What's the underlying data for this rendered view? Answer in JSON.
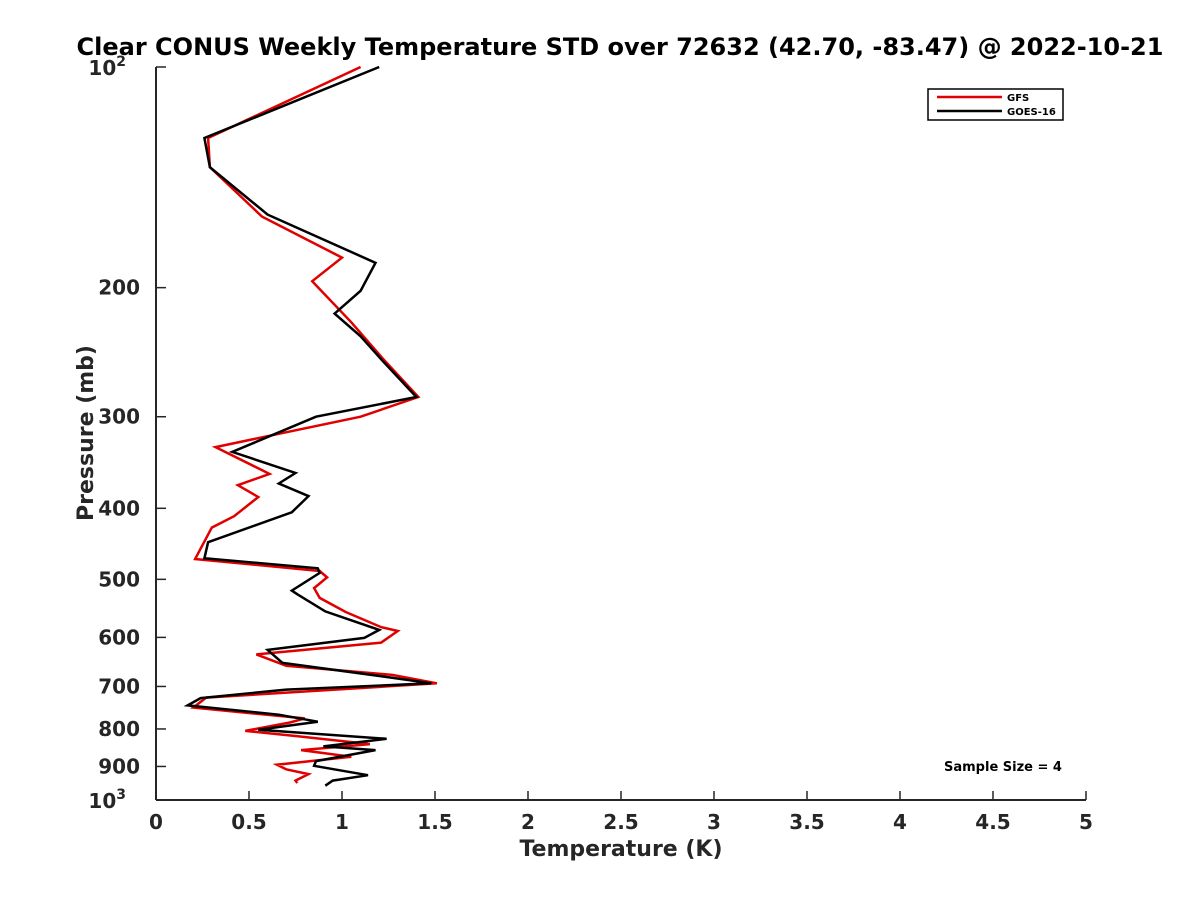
{
  "chart_data": {
    "type": "line",
    "title": "Clear CONUS Weekly Temperature STD over 72632 (42.70, -83.47) @ 2022-10-21",
    "xlabel": "Temperature (K)",
    "ylabel": "Pressure (mb)",
    "xlim": [
      0,
      5
    ],
    "ylim": [
      100,
      1000
    ],
    "y_scale": "log",
    "y_reversed": true,
    "grid": false,
    "legend_position": "top-right",
    "x_ticks": [
      "0",
      "0.5",
      "1",
      "1.5",
      "2",
      "2.5",
      "3",
      "3.5",
      "4",
      "4.5",
      "5"
    ],
    "x_tick_values": [
      0,
      0.5,
      1,
      1.5,
      2,
      2.5,
      3,
      3.5,
      4,
      4.5,
      5
    ],
    "y_ticks_mid": [
      "200",
      "300",
      "400",
      "500",
      "600",
      "700",
      "800",
      "900"
    ],
    "y_tick_mid_values": [
      200,
      300,
      400,
      500,
      600,
      700,
      800,
      900
    ],
    "y_ticks_exp": [
      {
        "base": "10",
        "exp": "2",
        "value": 100
      },
      {
        "base": "10",
        "exp": "3",
        "value": 1000
      }
    ],
    "annotation": "Sample Size = 4",
    "series": [
      {
        "name": "GFS",
        "color": "#e00000",
        "points": [
          [
            1.1,
            100
          ],
          [
            0.28,
            125
          ],
          [
            0.29,
            137
          ],
          [
            0.57,
            160
          ],
          [
            1.0,
            182
          ],
          [
            0.84,
            196
          ],
          [
            1.05,
            223
          ],
          [
            1.22,
            250
          ],
          [
            1.41,
            282
          ],
          [
            1.1,
            300
          ],
          [
            0.32,
            330
          ],
          [
            0.61,
            359
          ],
          [
            0.44,
            372
          ],
          [
            0.55,
            386
          ],
          [
            0.42,
            410
          ],
          [
            0.3,
            425
          ],
          [
            0.21,
            469
          ],
          [
            0.88,
            487
          ],
          [
            0.92,
            497
          ],
          [
            0.85,
            514
          ],
          [
            0.88,
            530
          ],
          [
            1.02,
            554
          ],
          [
            1.21,
            581
          ],
          [
            1.3,
            588
          ],
          [
            1.21,
            610
          ],
          [
            0.54,
            633
          ],
          [
            0.7,
            656
          ],
          [
            1.27,
            675
          ],
          [
            1.51,
            693
          ],
          [
            0.27,
            725
          ],
          [
            0.2,
            748
          ],
          [
            0.8,
            774
          ],
          [
            0.72,
            784
          ],
          [
            0.48,
            805
          ],
          [
            0.75,
            818
          ],
          [
            1.15,
            839
          ],
          [
            0.78,
            855
          ],
          [
            1.05,
            873
          ],
          [
            0.65,
            895
          ],
          [
            0.7,
            908
          ],
          [
            0.82,
            922
          ],
          [
            0.75,
            941
          ],
          [
            0.76,
            948
          ]
        ]
      },
      {
        "name": "GOES-16",
        "color": "#000000",
        "points": [
          [
            1.2,
            100
          ],
          [
            0.26,
            125
          ],
          [
            0.29,
            137
          ],
          [
            0.6,
            159
          ],
          [
            1.18,
            185
          ],
          [
            1.1,
            202
          ],
          [
            0.96,
            217
          ],
          [
            1.1,
            233
          ],
          [
            1.22,
            252
          ],
          [
            1.4,
            282
          ],
          [
            0.86,
            300
          ],
          [
            0.41,
            335
          ],
          [
            0.75,
            358
          ],
          [
            0.66,
            370
          ],
          [
            0.82,
            385
          ],
          [
            0.73,
            405
          ],
          [
            0.28,
            445
          ],
          [
            0.26,
            468
          ],
          [
            0.87,
            483
          ],
          [
            0.88,
            490
          ],
          [
            0.73,
            518
          ],
          [
            0.76,
            524
          ],
          [
            0.91,
            553
          ],
          [
            1.2,
            586
          ],
          [
            1.12,
            601
          ],
          [
            0.6,
            624
          ],
          [
            0.68,
            650
          ],
          [
            1.25,
            680
          ],
          [
            1.48,
            693
          ],
          [
            0.7,
            707
          ],
          [
            0.24,
            726
          ],
          [
            0.17,
            743
          ],
          [
            0.66,
            765
          ],
          [
            0.87,
            782
          ],
          [
            0.55,
            802
          ],
          [
            1.24,
            825
          ],
          [
            0.9,
            845
          ],
          [
            1.18,
            855
          ],
          [
            0.86,
            885
          ],
          [
            0.85,
            898
          ],
          [
            1.0,
            912
          ],
          [
            1.14,
            925
          ],
          [
            0.95,
            941
          ],
          [
            0.91,
            956
          ]
        ]
      }
    ]
  }
}
